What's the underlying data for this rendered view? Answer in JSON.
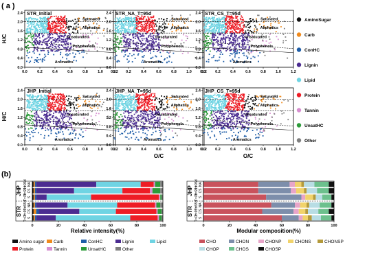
{
  "panel_labels": {
    "a": "( a )",
    "b": "(b)"
  },
  "chart_data": [
    {
      "type": "scatter",
      "title": "STR_Initial",
      "xlim": [
        0,
        1.2
      ],
      "ylim": [
        0,
        2.5
      ],
      "x_ticks": [
        0.0,
        0.2,
        0.4,
        0.6,
        0.8,
        1.0,
        1.2
      ],
      "y_ticks": [
        0.0,
        0.4,
        0.8,
        1.2,
        1.6,
        2.0,
        2.4
      ],
      "ylabel": "H/C",
      "xlabel": "",
      "annotations": [
        "Saturated",
        "Aliphatics",
        "Unsaturated",
        "Polyphenols",
        "Aromatics"
      ]
    },
    {
      "type": "scatter",
      "title": "STR_NA_T=95d",
      "xlim": [
        0,
        1.2
      ],
      "ylim": [
        0,
        2.5
      ],
      "x_ticks": [
        0.0,
        0.2,
        0.4,
        0.6,
        0.8,
        1.0,
        1.2
      ],
      "y_ticks": [
        0.0,
        0.4,
        0.8,
        1.2,
        1.6,
        2.0,
        2.4
      ],
      "ylabel": "",
      "xlabel": "",
      "annotations": [
        "Saturated",
        "Aliphatics",
        "Unsaturated",
        "Polyphenols",
        "Aromatics"
      ]
    },
    {
      "type": "scatter",
      "title": "STR_CS_T=95d",
      "xlim": [
        0,
        1.2
      ],
      "ylim": [
        0,
        2.5
      ],
      "x_ticks": [
        0.0,
        0.2,
        0.4,
        0.6,
        0.8,
        1.0,
        1.2
      ],
      "y_ticks": [
        0.0,
        0.4,
        0.8,
        1.2,
        1.6,
        2.0,
        2.4
      ],
      "ylabel": "",
      "xlabel": "",
      "annotations": [
        "Saturated",
        "Aliphatics",
        "Unsaturated",
        "Polyphenols",
        "Aromatics"
      ]
    },
    {
      "type": "scatter",
      "title": "JHP_Initial",
      "xlim": [
        0,
        1.2
      ],
      "ylim": [
        0,
        2.5
      ],
      "x_ticks": [
        0.0,
        0.2,
        0.4,
        0.6,
        0.8,
        1.0,
        1.2
      ],
      "y_ticks": [
        0.0,
        0.4,
        0.8,
        1.2,
        1.6,
        2.0,
        2.4
      ],
      "ylabel": "H/C",
      "xlabel": "",
      "annotations": [
        "Saturated",
        "Aliphatics",
        "Unsaturated",
        "Polyphenols",
        "Aromatics"
      ]
    },
    {
      "type": "scatter",
      "title": "JHP_NA_T=95d",
      "xlim": [
        0,
        1.2
      ],
      "ylim": [
        0,
        2.5
      ],
      "x_ticks": [
        0.0,
        0.2,
        0.4,
        0.6,
        0.8,
        1.0,
        1.2
      ],
      "y_ticks": [
        0.0,
        0.4,
        0.8,
        1.2,
        1.6,
        2.0,
        2.4
      ],
      "ylabel": "",
      "xlabel": "O/C",
      "annotations": [
        "Saturated",
        "Aliphatics",
        "Unsaturated",
        "Polyphenols",
        "Aromatics"
      ]
    },
    {
      "type": "scatter",
      "title": "JHP_CS_T=95d",
      "xlim": [
        0,
        1.2
      ],
      "ylim": [
        0,
        2.5
      ],
      "x_ticks": [
        0.0,
        0.2,
        0.4,
        0.6,
        0.8,
        1.0,
        1.2
      ],
      "y_ticks": [
        0.0,
        0.4,
        0.8,
        1.2,
        1.6,
        2.0,
        2.4
      ],
      "ylabel": "",
      "xlabel": "O/C",
      "annotations": [
        "Saturated",
        "Aliphatics",
        "Unsaturated",
        "Polyphenols",
        "Aromatics"
      ]
    },
    {
      "type": "bar",
      "orientation": "horizontal-stacked",
      "xlabel": "Relative intensity(%)",
      "xlim": [
        0,
        100
      ],
      "x_ticks": [
        0,
        20,
        40,
        60,
        80,
        100
      ],
      "groups": [
        {
          "name": "JHP",
          "rows": [
            {
              "label": "NA",
              "sub": "T=95d"
            },
            {
              "label": "CS",
              "sub": "T=95d"
            },
            {
              "label": "S",
              "sub": "T=0d"
            }
          ]
        },
        {
          "name": "STR",
          "rows": [
            {
              "label": "NA",
              "sub": "T=95d"
            },
            {
              "label": "CS",
              "sub": "T=95d"
            },
            {
              "label": "S",
              "sub": "T=0d"
            }
          ]
        }
      ],
      "series": [
        {
          "name": "Amino sugar",
          "color": "#111111",
          "values": [
            1,
            1,
            1,
            1,
            1,
            1
          ]
        },
        {
          "name": "Carb",
          "color": "#f08a1c",
          "values": [
            1,
            1,
            1,
            1,
            2,
            1
          ]
        },
        {
          "name": "ConHC",
          "color": "#1f5ea8",
          "values": [
            1,
            1,
            1,
            1,
            2,
            1
          ]
        },
        {
          "name": "Lignin",
          "color": "#4b2c91",
          "values": [
            46,
            29,
            8,
            24,
            31,
            15
          ]
        },
        {
          "name": "Lipid",
          "color": "#6fd4e3",
          "values": [
            34,
            37,
            34,
            38,
            28,
            57
          ]
        },
        {
          "name": "Protein",
          "color": "#ee1c25",
          "values": [
            10,
            21,
            52,
            29,
            31,
            21
          ]
        },
        {
          "name": "Tannin",
          "color": "#d78fd0",
          "values": [
            1,
            2,
            1,
            1,
            1,
            1
          ]
        },
        {
          "name": "UnsatHC",
          "color": "#2d9b3a",
          "values": [
            4,
            6,
            1,
            3,
            3,
            2
          ]
        },
        {
          "name": "Other",
          "color": "#7f7f7f",
          "values": [
            2,
            2,
            1,
            2,
            1,
            1
          ]
        }
      ]
    },
    {
      "type": "bar",
      "orientation": "horizontal-stacked",
      "xlabel": "Modular composition(%)",
      "xlim": [
        0,
        100
      ],
      "x_ticks": [
        0,
        20,
        40,
        60,
        80,
        100
      ],
      "groups": [
        {
          "name": "JHP",
          "rows": [
            {
              "label": "NA",
              "sub": "T=95d"
            },
            {
              "label": "CS",
              "sub": "T=95d"
            },
            {
              "label": "S",
              "sub": "T=0d"
            }
          ]
        },
        {
          "name": "STR",
          "rows": [
            {
              "label": "NA",
              "sub": "T=95d"
            },
            {
              "label": "CS",
              "sub": "T=95d"
            },
            {
              "label": "S",
              "sub": "T=0d"
            }
          ]
        }
      ],
      "series": [
        {
          "name": "CHO",
          "color": "#c9525c",
          "values": [
            42,
            42,
            48,
            52,
            45,
            60
          ]
        },
        {
          "name": "CHON",
          "color": "#7d8eab",
          "values": [
            24,
            25,
            27,
            18,
            24,
            13
          ]
        },
        {
          "name": "CHONP",
          "color": "#e8a5c9",
          "values": [
            4,
            4,
            3,
            4,
            4,
            3
          ]
        },
        {
          "name": "CHONS",
          "color": "#f1d36b",
          "values": [
            5,
            6,
            6,
            5,
            5,
            4
          ]
        },
        {
          "name": "CHONSP",
          "color": "#b49a3b",
          "values": [
            2,
            2,
            2,
            2,
            2,
            3
          ]
        },
        {
          "name": "CHOP",
          "color": "#b8dde4",
          "values": [
            8,
            8,
            5,
            8,
            8,
            7
          ]
        },
        {
          "name": "CHOS",
          "color": "#6cc08d",
          "values": [
            11,
            9,
            7,
            9,
            8,
            8
          ]
        },
        {
          "name": "CHOSP",
          "color": "#111111",
          "values": [
            4,
            4,
            2,
            2,
            4,
            2
          ]
        }
      ]
    }
  ],
  "legend_a": [
    {
      "name": "AminoSugar",
      "color": "#111111"
    },
    {
      "name": "Carb",
      "color": "#f08a1c"
    },
    {
      "name": "ConHC",
      "color": "#1f5ea8"
    },
    {
      "name": "Lignin",
      "color": "#4b2c91"
    },
    {
      "name": "Lipid",
      "color": "#6fd4e3"
    },
    {
      "name": "Protein",
      "color": "#ee1c25"
    },
    {
      "name": "Tannin",
      "color": "#d78fd0"
    },
    {
      "name": "UnsatHC",
      "color": "#2d9b3a"
    },
    {
      "name": "Other",
      "color": "#7f7f7f"
    }
  ]
}
